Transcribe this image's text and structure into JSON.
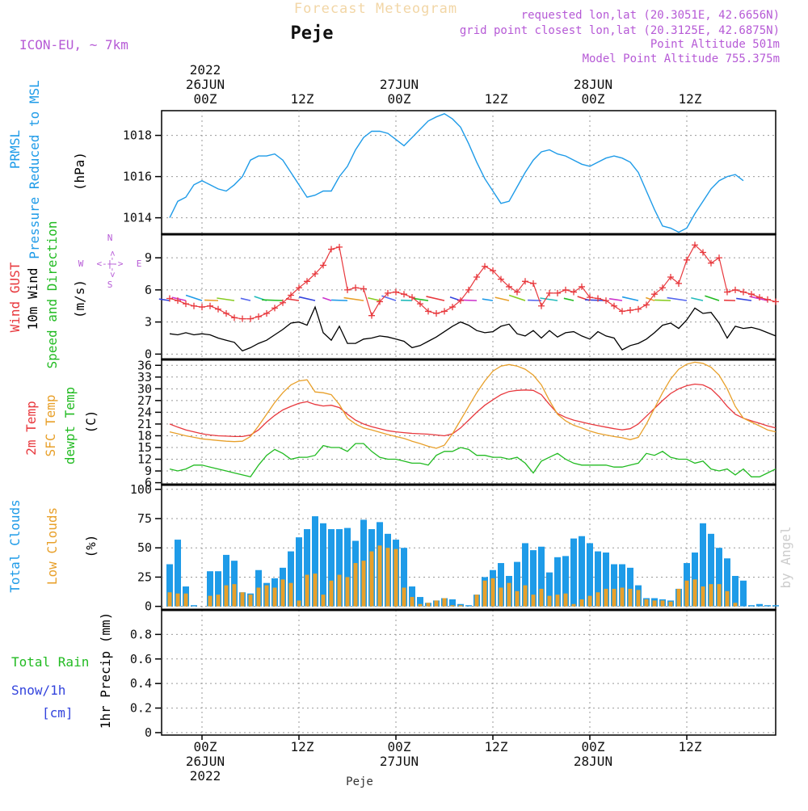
{
  "header": {
    "title": "Forecast Meteogram",
    "location": "Peje",
    "model": "ICON-EU, ~ 7km",
    "requested": "requested lon,lat (20.3051E, 42.6656N)",
    "gridpoint": "grid point closest lon,lat (20.3125E, 42.6875N)",
    "point_alt": "Point Altitude 501m",
    "model_alt": "Model Point Altitude 755.375m",
    "footer_location": "Peje",
    "credit": "by Angel"
  },
  "time_axis": {
    "top_labels": [
      {
        "lines": [
          "2022",
          "26JUN",
          "00Z"
        ]
      },
      {
        "lines": [
          "12Z"
        ]
      },
      {
        "lines": [
          "27JUN",
          "00Z"
        ]
      },
      {
        "lines": [
          "12Z"
        ]
      },
      {
        "lines": [
          "28JUN",
          "00Z"
        ]
      },
      {
        "lines": [
          "12Z"
        ]
      }
    ],
    "bottom_labels": [
      {
        "lines": [
          "00Z",
          "26JUN",
          "2022"
        ]
      },
      {
        "lines": [
          "12Z"
        ]
      },
      {
        "lines": [
          "00Z",
          "27JUN"
        ]
      },
      {
        "lines": [
          "12Z"
        ]
      },
      {
        "lines": [
          "00Z",
          "28JUN"
        ]
      },
      {
        "lines": [
          "12Z"
        ]
      }
    ]
  },
  "panel_labels": {
    "pressure": [
      {
        "text": "PRMSL",
        "color": "#1e9be8"
      },
      {
        "text": "Pressure Reduced to MSL",
        "color": "#1e9be8"
      },
      {
        "text": "(hPa)",
        "color": "#000000"
      }
    ],
    "wind": [
      {
        "text": "Wind GUST",
        "color": "#e8383d"
      },
      {
        "text": "10m Wind",
        "color": "#000000"
      },
      {
        "text": "Speed and Direction",
        "color": "#22bb22"
      },
      {
        "text": "(m/s)",
        "color": "#000000"
      }
    ],
    "compass": {
      "n": "N",
      "s": "S",
      "w": "W",
      "e": "E",
      "arrows": "<-|->"
    },
    "temp": [
      {
        "text": "2m Temp",
        "color": "#e8383d"
      },
      {
        "text": "SFC Temp",
        "color": "#e8a02a"
      },
      {
        "text": "dewpt Temp",
        "color": "#22bb22"
      },
      {
        "text": "(C)",
        "color": "#000000"
      }
    ],
    "cloud": [
      {
        "text": "Total Clouds",
        "color": "#1e9be8"
      },
      {
        "text": "Low Clouds",
        "color": "#e8a02a"
      },
      {
        "text": "(%)",
        "color": "#000000"
      }
    ],
    "precip_left": [
      {
        "text": "Total  Rain",
        "color": "#22bb22"
      },
      {
        "text": "Snow/1h",
        "color": "#3344dd"
      },
      {
        "text": "[cm]",
        "color": "#3344dd"
      }
    ],
    "precip_axis": "1hr Precip (mm)"
  },
  "chart_data": [
    {
      "type": "line",
      "name": "pressure",
      "x_hours": [
        -4,
        -3,
        -2,
        -1,
        0,
        1,
        2,
        3,
        4,
        5,
        6,
        7,
        8,
        9,
        10,
        11,
        12,
        13,
        14,
        15,
        16,
        17,
        18,
        19,
        20,
        21,
        22,
        23,
        24,
        25,
        26,
        27,
        28,
        29,
        30,
        31,
        32,
        33,
        34,
        35,
        36,
        37,
        38,
        39,
        40,
        41,
        42,
        43,
        44,
        45,
        46,
        47,
        48,
        49,
        50,
        51,
        52,
        53,
        54,
        55,
        56,
        57,
        58,
        59,
        60,
        61,
        62,
        63,
        64,
        65,
        66,
        67,
        68,
        69,
        70,
        71
      ],
      "series": [
        {
          "name": "PRMSL",
          "color": "#1e9be8",
          "values": [
            1014.0,
            1014.8,
            1015.0,
            1015.6,
            1015.8,
            1015.6,
            1015.4,
            1015.3,
            1015.6,
            1016.0,
            1016.8,
            1017.0,
            1017.0,
            1017.1,
            1016.8,
            1016.2,
            1015.6,
            1015.0,
            1015.1,
            1015.3,
            1015.3,
            1016.0,
            1016.5,
            1017.3,
            1017.9,
            1018.2,
            1018.2,
            1018.1,
            1017.8,
            1017.5,
            1017.9,
            1018.3,
            1018.7,
            1018.9,
            1019.05,
            1018.8,
            1018.4,
            1017.6,
            1016.7,
            1015.9,
            1015.3,
            1014.7,
            1014.8,
            1015.5,
            1016.2,
            1016.8,
            1017.2,
            1017.3,
            1017.1,
            1017.0,
            1016.8,
            1016.6,
            1016.5,
            1016.7,
            1016.9,
            1017.0,
            1016.9,
            1016.7,
            1016.2,
            1015.3,
            1014.4,
            1013.6,
            1013.5,
            1013.3,
            1013.5,
            1014.2,
            1014.8,
            1015.4,
            1015.8,
            1016.0,
            1016.1,
            1015.8
          ]
        }
      ],
      "ylim": [
        1013.2,
        1019.2
      ],
      "yticks": [
        1014,
        1016,
        1018
      ]
    },
    {
      "type": "line",
      "name": "wind",
      "x_hours": [
        -4,
        -3,
        -2,
        -1,
        0,
        1,
        2,
        3,
        4,
        5,
        6,
        7,
        8,
        9,
        10,
        11,
        12,
        13,
        14,
        15,
        16,
        17,
        18,
        19,
        20,
        21,
        22,
        23,
        24,
        25,
        26,
        27,
        28,
        29,
        30,
        31,
        32,
        33,
        34,
        35,
        36,
        37,
        38,
        39,
        40,
        41,
        42,
        43,
        44,
        45,
        46,
        47,
        48,
        49,
        50,
        51,
        52,
        53,
        54,
        55,
        56,
        57,
        58,
        59,
        60,
        61,
        62,
        63,
        64,
        65,
        66,
        67,
        68,
        69,
        70,
        71
      ],
      "series": [
        {
          "name": "Wind GUST",
          "color": "#e8383d",
          "markers": "+",
          "values": [
            5.2,
            5.0,
            4.7,
            4.5,
            4.4,
            4.5,
            4.2,
            3.8,
            3.4,
            3.3,
            3.3,
            3.5,
            3.8,
            4.3,
            4.8,
            5.5,
            6.2,
            6.8,
            7.5,
            8.3,
            9.8,
            10.0,
            6.0,
            6.2,
            6.1,
            3.6,
            4.9,
            5.7,
            5.8,
            5.6,
            5.3,
            4.7,
            4.0,
            3.8,
            4.0,
            4.4,
            5.0,
            6.0,
            7.2,
            8.2,
            7.8,
            7.0,
            6.3,
            5.8,
            6.8,
            6.6,
            4.5,
            5.7,
            5.7,
            6.0,
            5.8,
            6.3,
            5.3,
            5.2,
            5.0,
            4.5,
            4.0,
            4.1,
            4.2,
            4.6,
            5.6,
            6.2,
            7.2,
            6.6,
            8.8,
            10.2,
            9.5,
            8.5,
            9.0,
            5.8,
            6.0,
            5.8,
            5.6,
            5.3,
            5.1,
            4.9
          ]
        },
        {
          "name": "10m Wind",
          "color": "#000000",
          "values": [
            1.9,
            1.8,
            2.0,
            1.8,
            1.9,
            1.8,
            1.5,
            1.3,
            1.1,
            0.3,
            0.6,
            1.0,
            1.3,
            1.8,
            2.3,
            2.9,
            3.0,
            2.7,
            4.4,
            2.0,
            1.3,
            2.6,
            1.0,
            1.0,
            1.4,
            1.5,
            1.7,
            1.6,
            1.4,
            1.2,
            0.6,
            0.8,
            1.2,
            1.6,
            2.1,
            2.6,
            3.0,
            2.7,
            2.2,
            2.0,
            2.1,
            2.6,
            2.8,
            1.9,
            1.7,
            2.2,
            1.5,
            2.2,
            1.6,
            2.0,
            2.1,
            1.7,
            1.4,
            2.1,
            1.7,
            1.5,
            0.4,
            0.8,
            1.0,
            1.4,
            2.0,
            2.7,
            2.9,
            2.4,
            3.2,
            4.3,
            3.8,
            3.9,
            2.9,
            1.5,
            2.6,
            2.4,
            2.5,
            2.3,
            2.0,
            1.7
          ]
        }
      ],
      "ylim": [
        -0.5,
        11.2
      ],
      "yticks": [
        0,
        3,
        6,
        9
      ]
    },
    {
      "type": "line",
      "name": "temperature",
      "x_hours": [
        -4,
        -3,
        -2,
        -1,
        0,
        1,
        2,
        3,
        4,
        5,
        6,
        7,
        8,
        9,
        10,
        11,
        12,
        13,
        14,
        15,
        16,
        17,
        18,
        19,
        20,
        21,
        22,
        23,
        24,
        25,
        26,
        27,
        28,
        29,
        30,
        31,
        32,
        33,
        34,
        35,
        36,
        37,
        38,
        39,
        40,
        41,
        42,
        43,
        44,
        45,
        46,
        47,
        48,
        49,
        50,
        51,
        52,
        53,
        54,
        55,
        56,
        57,
        58,
        59,
        60,
        61,
        62,
        63,
        64,
        65,
        66,
        67,
        68,
        69,
        70,
        71
      ],
      "series": [
        {
          "name": "2m Temp",
          "color": "#e8383d",
          "values": [
            21.0,
            20.2,
            19.5,
            19.0,
            18.5,
            18.2,
            18.0,
            17.9,
            17.8,
            17.8,
            18.2,
            19.5,
            21.5,
            23.2,
            24.6,
            25.5,
            26.3,
            26.7,
            26.0,
            25.6,
            25.8,
            25.2,
            23.5,
            22.0,
            21.0,
            20.3,
            19.8,
            19.3,
            19.0,
            18.8,
            18.6,
            18.5,
            18.4,
            18.2,
            18.0,
            18.5,
            20.0,
            22.0,
            24.0,
            25.8,
            27.2,
            28.5,
            29.3,
            29.6,
            29.7,
            29.6,
            28.5,
            26.0,
            23.7,
            22.7,
            22.0,
            21.5,
            21.0,
            20.6,
            20.2,
            19.8,
            19.5,
            19.8,
            21.0,
            23.0,
            25.0,
            27.0,
            28.8,
            30.0,
            30.8,
            31.2,
            31.0,
            30.0,
            28.0,
            25.5,
            23.5,
            22.5,
            21.8,
            21.2,
            20.5,
            20.0
          ]
        },
        {
          "name": "SFC Temp",
          "color": "#e8a02a",
          "values": [
            19.0,
            18.5,
            18.0,
            17.6,
            17.2,
            17.0,
            16.8,
            16.6,
            16.5,
            16.6,
            17.8,
            20.5,
            23.5,
            26.5,
            29.0,
            31.0,
            32.0,
            32.3,
            29.2,
            29.0,
            28.5,
            26.0,
            22.5,
            21.0,
            20.0,
            19.5,
            18.9,
            18.3,
            17.8,
            17.3,
            16.6,
            16.0,
            15.3,
            14.8,
            15.6,
            18.5,
            22.0,
            25.5,
            29.0,
            32.0,
            34.5,
            35.8,
            36.2,
            35.8,
            35.0,
            33.5,
            31.0,
            27.0,
            23.5,
            21.8,
            20.7,
            20.0,
            19.2,
            18.6,
            18.2,
            17.8,
            17.5,
            17.0,
            17.6,
            21.0,
            25.0,
            29.0,
            32.5,
            35.0,
            36.3,
            36.8,
            36.5,
            35.5,
            33.5,
            30.0,
            25.5,
            22.5,
            21.5,
            20.5,
            19.5,
            19.0
          ]
        },
        {
          "name": "dewpt Temp",
          "color": "#22bb22",
          "values": [
            9.5,
            9.0,
            9.5,
            10.5,
            10.5,
            10.0,
            9.5,
            9.0,
            8.5,
            8.0,
            7.5,
            10.5,
            13.0,
            14.5,
            13.5,
            12.0,
            12.5,
            12.5,
            13.0,
            15.5,
            15.0,
            15.0,
            14.0,
            16.0,
            16.0,
            14.0,
            12.5,
            12.0,
            12.0,
            11.5,
            11.0,
            11.0,
            10.5,
            13.0,
            14.0,
            14.0,
            15.0,
            14.5,
            13.0,
            13.0,
            12.5,
            12.5,
            12.0,
            12.5,
            11.0,
            8.5,
            11.5,
            12.5,
            13.5,
            12.0,
            11.0,
            10.5,
            10.5,
            10.5,
            10.5,
            10.0,
            10.0,
            10.5,
            11.0,
            13.5,
            13.0,
            14.0,
            12.5,
            12.0,
            12.0,
            11.0,
            11.5,
            9.5,
            9.0,
            9.5,
            8.0,
            9.5,
            7.5,
            7.5,
            8.5,
            9.5
          ]
        }
      ],
      "ylim": [
        5.5,
        37.5
      ],
      "yticks": [
        6,
        9,
        12,
        15,
        18,
        21,
        24,
        27,
        30,
        33,
        36
      ]
    },
    {
      "type": "bar",
      "name": "clouds",
      "x_hours": [
        -4,
        -3,
        -2,
        -1,
        0,
        1,
        2,
        3,
        4,
        5,
        6,
        7,
        8,
        9,
        10,
        11,
        12,
        13,
        14,
        15,
        16,
        17,
        18,
        19,
        20,
        21,
        22,
        23,
        24,
        25,
        26,
        27,
        28,
        29,
        30,
        31,
        32,
        33,
        34,
        35,
        36,
        37,
        38,
        39,
        40,
        41,
        42,
        43,
        44,
        45,
        46,
        47,
        48,
        49,
        50,
        51,
        52,
        53,
        54,
        55,
        56,
        57,
        58,
        59,
        60,
        61,
        62,
        63,
        64,
        65,
        66,
        67,
        68,
        69,
        70,
        71
      ],
      "series": [
        {
          "name": "Total Clouds",
          "color": "#1e9be8",
          "values": [
            36,
            57,
            17,
            1,
            0,
            30,
            30,
            44,
            39,
            12,
            11,
            31,
            20,
            24,
            33,
            47,
            59,
            66,
            77,
            71,
            66,
            66,
            67,
            56,
            74,
            66,
            72,
            62,
            57,
            50,
            17,
            8,
            3,
            5,
            7,
            6,
            2,
            1,
            10,
            25,
            31,
            37,
            26,
            38,
            54,
            48,
            51,
            29,
            42,
            43,
            58,
            60,
            54,
            47,
            46,
            36,
            36,
            33,
            18,
            7,
            7,
            6,
            5,
            15,
            37,
            46,
            71,
            62,
            50,
            41,
            26,
            22,
            1,
            2,
            1,
            1
          ]
        },
        {
          "name": "Low Clouds",
          "color": "#e8a02a",
          "values": [
            12,
            11,
            11,
            0,
            0,
            9,
            10,
            18,
            19,
            12,
            10,
            16,
            18,
            16,
            23,
            20,
            5,
            27,
            28,
            10,
            22,
            27,
            25,
            37,
            39,
            47,
            52,
            50,
            49,
            16,
            8,
            2,
            3,
            5,
            7,
            1,
            1,
            0,
            10,
            22,
            24,
            16,
            20,
            13,
            18,
            10,
            15,
            9,
            10,
            11,
            2,
            6,
            9,
            12,
            15,
            15,
            16,
            15,
            14,
            6,
            5,
            5,
            4,
            15,
            22,
            23,
            17,
            19,
            19,
            13,
            3,
            0,
            0,
            0,
            0,
            0
          ]
        }
      ],
      "ylim": [
        -3,
        104
      ],
      "yticks": [
        0,
        25,
        50,
        75,
        100
      ]
    },
    {
      "type": "bar",
      "name": "precip",
      "series": [
        {
          "name": "Total Rain",
          "color": "#22bb22",
          "values": []
        },
        {
          "name": "Snow/1h",
          "color": "#3344dd",
          "values": []
        }
      ],
      "ylim": [
        -0.02,
        1.0
      ],
      "yticks": [
        "0",
        "0.2",
        "0.4",
        "0.6",
        "0.8"
      ]
    }
  ],
  "wind_vectors": [
    {
      "colors": [
        "#3344dd",
        "#5566ee",
        "#cc33cc",
        "#22bbbb",
        "#1e9be8",
        "#22bb22",
        "#e8a02a",
        "#e8383d",
        "#88cc22"
      ]
    }
  ]
}
